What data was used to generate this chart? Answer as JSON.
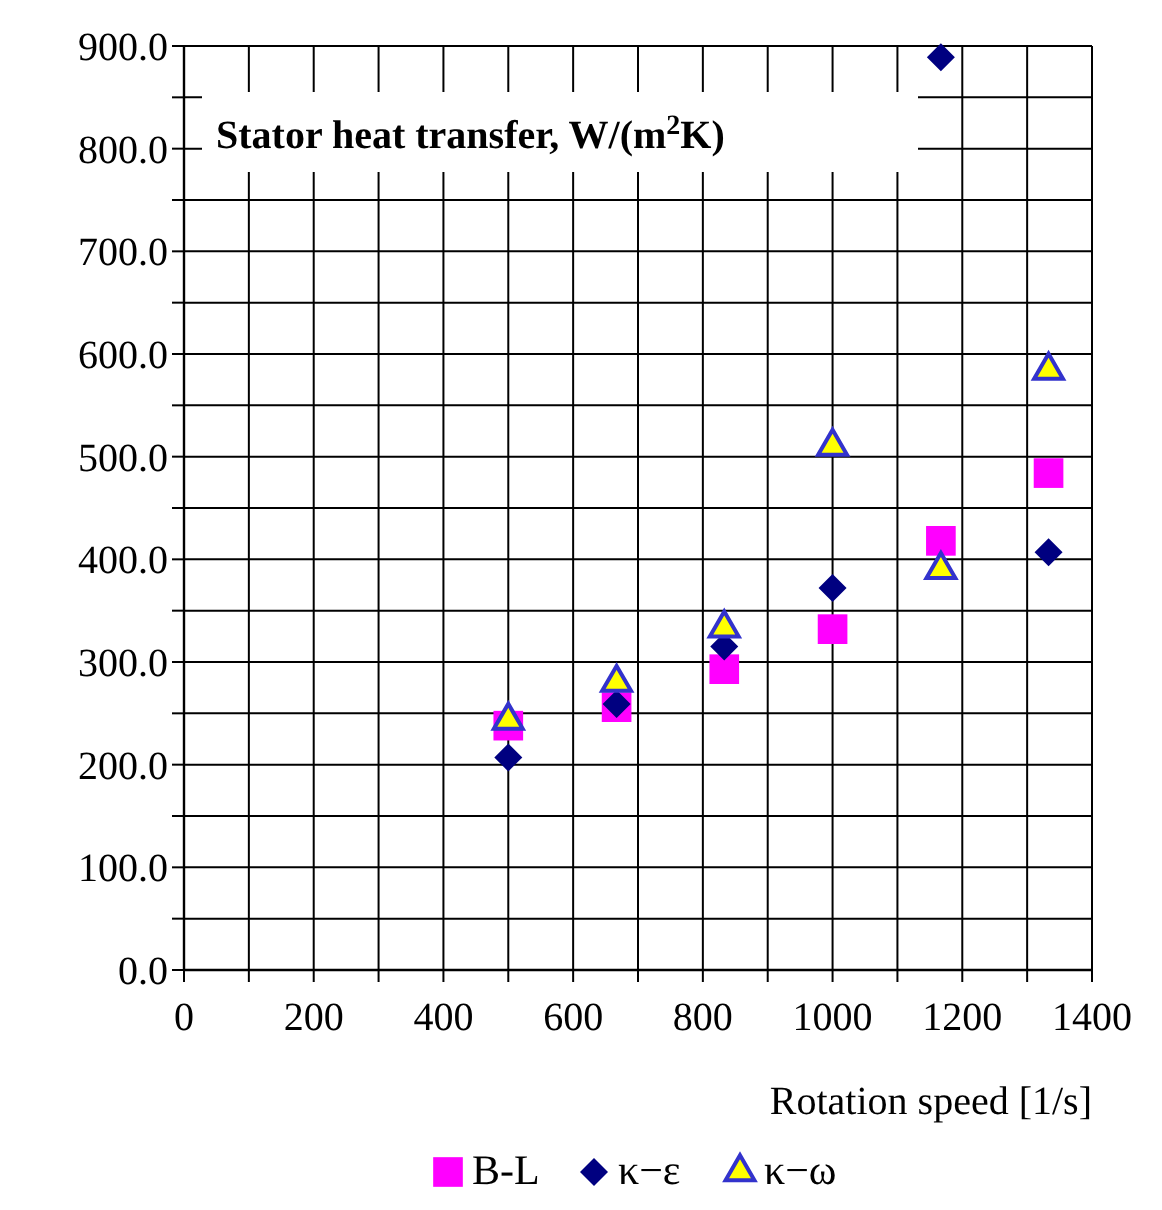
{
  "chart_data": {
    "type": "scatter",
    "title": "Stator heat transfer, W/(m$^{2}$K)",
    "xlabel": "Rotation speed [1/s]",
    "x": [
      500,
      667,
      833,
      1000,
      1167,
      1333
    ],
    "series": [
      {
        "name": "B-L",
        "color": "#ff00ff",
        "marker": "square",
        "values": [
          238,
          256,
          293,
          332,
          418,
          484
        ]
      },
      {
        "name": "κ−ε",
        "color": "#000080",
        "marker": "diamond",
        "values": [
          207,
          259,
          315,
          372,
          889,
          407
        ]
      },
      {
        "name": "κ−ω",
        "color": "#ffff00",
        "marker": "triangle",
        "values": [
          243,
          280,
          333,
          510,
          390,
          584
        ]
      }
    ],
    "xlim": [
      0,
      1400
    ],
    "xticks": [
      0,
      {
        "value": 100,
        "label": null
      },
      200,
      {
        "value": 300,
        "label": null
      },
      400,
      {
        "value": 500,
        "label": null
      },
      600,
      {
        "value": 700,
        "label": null
      },
      800,
      {
        "value": 900,
        "label": null
      },
      1000,
      {
        "value": 1100,
        "label": null
      },
      1200,
      {
        "value": 1300,
        "label": null
      },
      1400
    ],
    "ylim": [
      0,
      900
    ],
    "yticks": [
      {
        "value": 0,
        "label": "0.0"
      },
      {
        "value": 50,
        "label": null
      },
      {
        "value": 100,
        "label": "100.0"
      },
      {
        "value": 150,
        "label": null
      },
      {
        "value": 200,
        "label": "200.0"
      },
      {
        "value": 250,
        "label": null
      },
      {
        "value": 300,
        "label": "300.0"
      },
      {
        "value": 350,
        "label": null
      },
      {
        "value": 400,
        "label": "400.0"
      },
      {
        "value": 450,
        "label": null
      },
      {
        "value": 500,
        "label": "500.0"
      },
      {
        "value": 550,
        "label": null
      },
      {
        "value": 600,
        "label": "600.0"
      },
      {
        "value": 650,
        "label": null
      },
      {
        "value": 700,
        "label": "700.0"
      },
      {
        "value": 750,
        "label": null
      },
      {
        "value": 800,
        "label": "800.0"
      },
      {
        "value": 850,
        "label": null
      },
      {
        "value": 900,
        "label": "900.0"
      }
    ],
    "grid": true,
    "legend": "bottom"
  }
}
